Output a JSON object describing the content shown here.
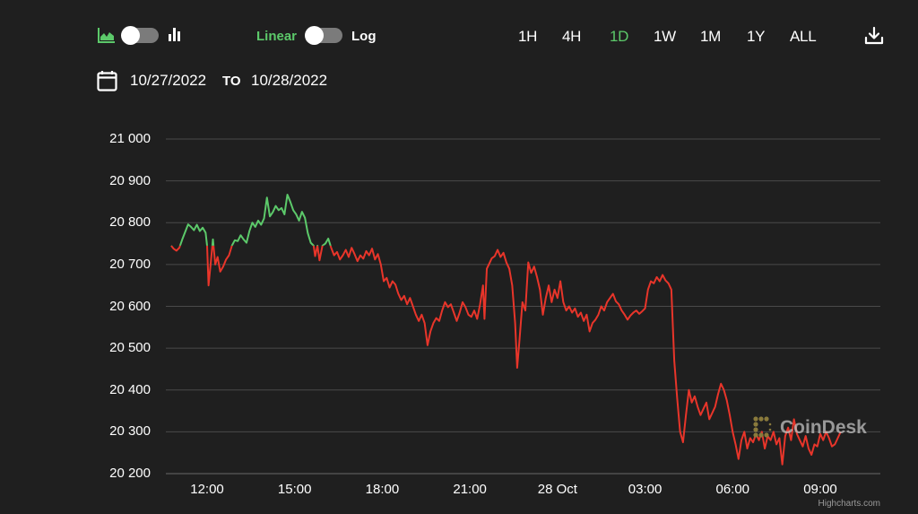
{
  "toolbar": {
    "chart_type_toggle": {
      "left_icon": "area-chart-icon",
      "right_icon": "bar-chart-icon",
      "state": "area"
    },
    "scale_toggle": {
      "left_label": "Linear",
      "right_label": "Log",
      "state": "Linear"
    },
    "ranges": [
      "1H",
      "4H",
      "1D",
      "1W",
      "1M",
      "1Y",
      "ALL"
    ],
    "active_range": "1D",
    "download_icon": "download-icon"
  },
  "date_range": {
    "from": "10/27/2022",
    "to_label": "TO",
    "to": "10/28/2022",
    "icon": "calendar-icon"
  },
  "watermark": "CoinDesk",
  "credits": "Highcharts.com",
  "colors": {
    "background": "#1f1f1f",
    "up": "#5cc96a",
    "down": "#e8352a",
    "grid": "#4a4a4a",
    "accent": "#5cc96a",
    "watermark_logo": "#8a7a3c"
  },
  "chart_data": {
    "type": "line",
    "title": "",
    "xlabel": "",
    "ylabel": "",
    "ylim": [
      20200,
      21000
    ],
    "yticks": [
      21000,
      20900,
      20800,
      20700,
      20600,
      20500,
      20400,
      20300,
      20200
    ],
    "ytick_labels": [
      "21 000",
      "20 900",
      "20 800",
      "20 700",
      "20 600",
      "20 500",
      "20 400",
      "20 300",
      "20 200"
    ],
    "xtick_labels": [
      "12:00",
      "15:00",
      "18:00",
      "21:00",
      "28 Oct",
      "03:00",
      "06:00",
      "09:00"
    ],
    "xtick_hours": [
      0,
      3,
      6,
      9,
      12,
      15,
      18,
      21
    ],
    "x_unit": "hours offset from 10/27/2022 12:00",
    "grid": true,
    "legend": false,
    "threshold": 20745,
    "threshold_note": "line colored green above threshold, red below",
    "series": [
      {
        "name": "Price",
        "points": [
          [
            -1.23,
            20745
          ],
          [
            -1.15,
            20738
          ],
          [
            -1.05,
            20733
          ],
          [
            -0.95,
            20740
          ],
          [
            -0.85,
            20760
          ],
          [
            -0.75,
            20778
          ],
          [
            -0.65,
            20796
          ],
          [
            -0.55,
            20790
          ],
          [
            -0.45,
            20782
          ],
          [
            -0.35,
            20795
          ],
          [
            -0.25,
            20780
          ],
          [
            -0.15,
            20788
          ],
          [
            -0.05,
            20776
          ],
          [
            0.0,
            20745
          ],
          [
            0.05,
            20650
          ],
          [
            0.12,
            20700
          ],
          [
            0.2,
            20760
          ],
          [
            0.28,
            20700
          ],
          [
            0.36,
            20718
          ],
          [
            0.45,
            20683
          ],
          [
            0.55,
            20695
          ],
          [
            0.65,
            20712
          ],
          [
            0.75,
            20722
          ],
          [
            0.85,
            20745
          ],
          [
            0.95,
            20758
          ],
          [
            1.05,
            20756
          ],
          [
            1.15,
            20770
          ],
          [
            1.25,
            20760
          ],
          [
            1.35,
            20752
          ],
          [
            1.45,
            20780
          ],
          [
            1.55,
            20800
          ],
          [
            1.65,
            20790
          ],
          [
            1.75,
            20805
          ],
          [
            1.85,
            20795
          ],
          [
            1.95,
            20810
          ],
          [
            2.05,
            20860
          ],
          [
            2.15,
            20815
          ],
          [
            2.25,
            20825
          ],
          [
            2.35,
            20840
          ],
          [
            2.45,
            20830
          ],
          [
            2.55,
            20835
          ],
          [
            2.65,
            20820
          ],
          [
            2.75,
            20867
          ],
          [
            2.85,
            20850
          ],
          [
            2.95,
            20830
          ],
          [
            3.05,
            20820
          ],
          [
            3.15,
            20805
          ],
          [
            3.25,
            20826
          ],
          [
            3.35,
            20812
          ],
          [
            3.45,
            20775
          ],
          [
            3.55,
            20752
          ],
          [
            3.65,
            20745
          ],
          [
            3.7,
            20720
          ],
          [
            3.78,
            20745
          ],
          [
            3.85,
            20710
          ],
          [
            3.95,
            20745
          ],
          [
            4.05,
            20750
          ],
          [
            4.15,
            20762
          ],
          [
            4.25,
            20740
          ],
          [
            4.35,
            20722
          ],
          [
            4.45,
            20730
          ],
          [
            4.55,
            20712
          ],
          [
            4.65,
            20722
          ],
          [
            4.75,
            20735
          ],
          [
            4.85,
            20718
          ],
          [
            4.95,
            20740
          ],
          [
            5.05,
            20725
          ],
          [
            5.15,
            20708
          ],
          [
            5.25,
            20722
          ],
          [
            5.35,
            20714
          ],
          [
            5.45,
            20732
          ],
          [
            5.55,
            20722
          ],
          [
            5.65,
            20738
          ],
          [
            5.75,
            20712
          ],
          [
            5.85,
            20725
          ],
          [
            5.95,
            20700
          ],
          [
            6.05,
            20660
          ],
          [
            6.15,
            20668
          ],
          [
            6.25,
            20645
          ],
          [
            6.35,
            20660
          ],
          [
            6.45,
            20652
          ],
          [
            6.55,
            20630
          ],
          [
            6.65,
            20615
          ],
          [
            6.75,
            20625
          ],
          [
            6.85,
            20605
          ],
          [
            6.95,
            20620
          ],
          [
            7.05,
            20600
          ],
          [
            7.15,
            20580
          ],
          [
            7.25,
            20565
          ],
          [
            7.35,
            20580
          ],
          [
            7.45,
            20560
          ],
          [
            7.55,
            20507
          ],
          [
            7.65,
            20540
          ],
          [
            7.75,
            20560
          ],
          [
            7.85,
            20572
          ],
          [
            7.95,
            20565
          ],
          [
            8.05,
            20590
          ],
          [
            8.15,
            20610
          ],
          [
            8.25,
            20598
          ],
          [
            8.35,
            20605
          ],
          [
            8.45,
            20585
          ],
          [
            8.55,
            20565
          ],
          [
            8.65,
            20585
          ],
          [
            8.75,
            20610
          ],
          [
            8.85,
            20598
          ],
          [
            8.95,
            20580
          ],
          [
            9.05,
            20575
          ],
          [
            9.15,
            20590
          ],
          [
            9.25,
            20570
          ],
          [
            9.35,
            20605
          ],
          [
            9.45,
            20650
          ],
          [
            9.5,
            20570
          ],
          [
            9.58,
            20690
          ],
          [
            9.65,
            20700
          ],
          [
            9.75,
            20715
          ],
          [
            9.85,
            20720
          ],
          [
            9.95,
            20735
          ],
          [
            10.05,
            20718
          ],
          [
            10.15,
            20728
          ],
          [
            10.25,
            20705
          ],
          [
            10.35,
            20690
          ],
          [
            10.45,
            20650
          ],
          [
            10.55,
            20560
          ],
          [
            10.62,
            20453
          ],
          [
            10.7,
            20520
          ],
          [
            10.8,
            20610
          ],
          [
            10.9,
            20590
          ],
          [
            11.0,
            20705
          ],
          [
            11.1,
            20680
          ],
          [
            11.2,
            20695
          ],
          [
            11.3,
            20670
          ],
          [
            11.4,
            20640
          ],
          [
            11.5,
            20580
          ],
          [
            11.6,
            20620
          ],
          [
            11.7,
            20650
          ],
          [
            11.8,
            20610
          ],
          [
            11.9,
            20640
          ],
          [
            12.0,
            20620
          ],
          [
            12.1,
            20660
          ],
          [
            12.2,
            20610
          ],
          [
            12.3,
            20590
          ],
          [
            12.4,
            20600
          ],
          [
            12.5,
            20585
          ],
          [
            12.6,
            20595
          ],
          [
            12.7,
            20575
          ],
          [
            12.8,
            20585
          ],
          [
            12.9,
            20565
          ],
          [
            13.0,
            20580
          ],
          [
            13.1,
            20540
          ],
          [
            13.2,
            20560
          ],
          [
            13.3,
            20568
          ],
          [
            13.4,
            20580
          ],
          [
            13.5,
            20600
          ],
          [
            13.6,
            20590
          ],
          [
            13.7,
            20610
          ],
          [
            13.8,
            20620
          ],
          [
            13.9,
            20630
          ],
          [
            14.0,
            20612
          ],
          [
            14.1,
            20605
          ],
          [
            14.2,
            20590
          ],
          [
            14.3,
            20580
          ],
          [
            14.4,
            20568
          ],
          [
            14.5,
            20578
          ],
          [
            14.6,
            20585
          ],
          [
            14.7,
            20590
          ],
          [
            14.8,
            20582
          ],
          [
            14.9,
            20588
          ],
          [
            15.0,
            20595
          ],
          [
            15.1,
            20640
          ],
          [
            15.2,
            20660
          ],
          [
            15.3,
            20655
          ],
          [
            15.4,
            20670
          ],
          [
            15.5,
            20660
          ],
          [
            15.6,
            20675
          ],
          [
            15.7,
            20662
          ],
          [
            15.8,
            20655
          ],
          [
            15.9,
            20640
          ],
          [
            16.0,
            20470
          ],
          [
            16.1,
            20380
          ],
          [
            16.2,
            20300
          ],
          [
            16.3,
            20275
          ],
          [
            16.4,
            20340
          ],
          [
            16.5,
            20400
          ],
          [
            16.6,
            20370
          ],
          [
            16.7,
            20385
          ],
          [
            16.8,
            20360
          ],
          [
            16.9,
            20340
          ],
          [
            17.0,
            20355
          ],
          [
            17.1,
            20370
          ],
          [
            17.2,
            20330
          ],
          [
            17.3,
            20345
          ],
          [
            17.4,
            20360
          ],
          [
            17.5,
            20390
          ],
          [
            17.6,
            20415
          ],
          [
            17.7,
            20400
          ],
          [
            17.8,
            20375
          ],
          [
            17.9,
            20340
          ],
          [
            18.0,
            20300
          ],
          [
            18.1,
            20270
          ],
          [
            18.2,
            20235
          ],
          [
            18.3,
            20280
          ],
          [
            18.4,
            20300
          ],
          [
            18.5,
            20260
          ],
          [
            18.6,
            20285
          ],
          [
            18.7,
            20275
          ],
          [
            18.8,
            20295
          ],
          [
            18.9,
            20280
          ],
          [
            19.0,
            20300
          ],
          [
            19.1,
            20260
          ],
          [
            19.2,
            20290
          ],
          [
            19.3,
            20280
          ],
          [
            19.4,
            20300
          ],
          [
            19.5,
            20270
          ],
          [
            19.6,
            20285
          ],
          [
            19.7,
            20222
          ],
          [
            19.8,
            20290
          ],
          [
            19.9,
            20310
          ],
          [
            20.0,
            20280
          ],
          [
            20.1,
            20330
          ],
          [
            20.2,
            20295
          ],
          [
            20.3,
            20280
          ],
          [
            20.4,
            20265
          ],
          [
            20.5,
            20290
          ],
          [
            20.6,
            20260
          ],
          [
            20.7,
            20245
          ],
          [
            20.8,
            20270
          ],
          [
            20.9,
            20265
          ],
          [
            21.0,
            20295
          ],
          [
            21.1,
            20280
          ],
          [
            21.2,
            20300
          ],
          [
            21.3,
            20285
          ],
          [
            21.4,
            20265
          ],
          [
            21.5,
            20270
          ],
          [
            21.6,
            20285
          ],
          [
            21.7,
            20300
          ]
        ]
      }
    ]
  }
}
